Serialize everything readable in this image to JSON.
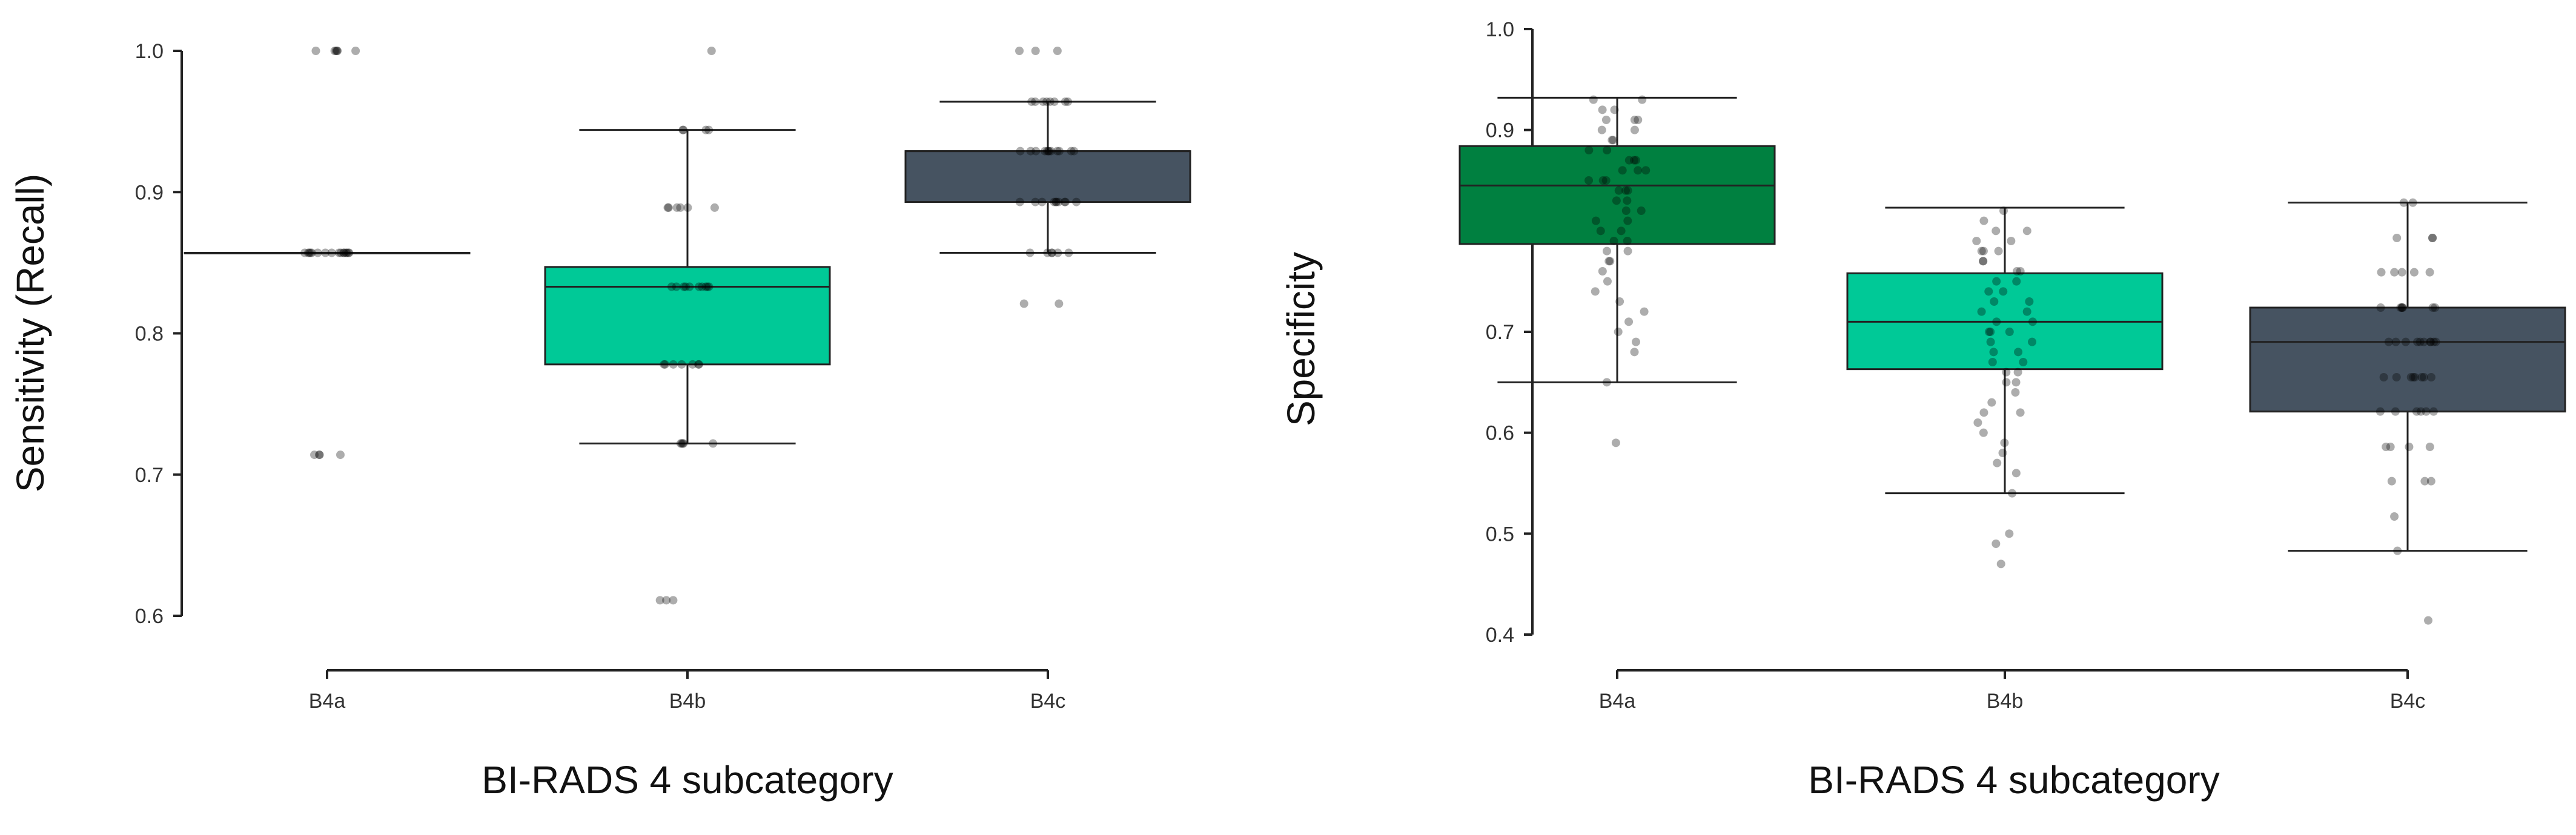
{
  "chart_data": [
    {
      "type": "box",
      "ylabel": "Sensitivity (Recall)",
      "xlabel": "BI-RADS 4 subcategory",
      "ylim": [
        0.6,
        1.0
      ],
      "yticks": [
        "0.6",
        "0.7",
        "0.8",
        "0.9",
        "1.0"
      ],
      "categories": [
        "B4a",
        "B4b",
        "B4c"
      ],
      "grid": false,
      "boxes": [
        {
          "category": "B4a",
          "color": "#000000",
          "whisker_low": 0.857,
          "q1": 0.857,
          "median": 0.857,
          "q3": 0.857,
          "whisker_high": 0.857,
          "points": [
            1.0,
            1.0,
            1.0,
            1.0,
            1.0,
            1.0,
            0.857,
            0.857,
            0.857,
            0.857,
            0.857,
            0.857,
            0.857,
            0.857,
            0.857,
            0.857,
            0.857,
            0.857,
            0.857,
            0.857,
            0.857,
            0.857,
            0.714,
            0.714,
            0.714,
            0.714
          ]
        },
        {
          "category": "B4b",
          "color": "#00C997",
          "whisker_low": 0.722,
          "q1": 0.778,
          "median": 0.833,
          "q3": 0.847,
          "whisker_high": 0.944,
          "points": [
            1.0,
            0.944,
            0.944,
            0.944,
            0.944,
            0.889,
            0.889,
            0.889,
            0.889,
            0.889,
            0.889,
            0.833,
            0.833,
            0.833,
            0.833,
            0.833,
            0.833,
            0.833,
            0.833,
            0.833,
            0.833,
            0.778,
            0.778,
            0.778,
            0.778,
            0.778,
            0.778,
            0.778,
            0.722,
            0.722,
            0.722,
            0.722,
            0.722,
            0.611,
            0.611,
            0.611
          ]
        },
        {
          "category": "B4c",
          "color": "#465361",
          "whisker_low": 0.857,
          "q1": 0.893,
          "median": 0.929,
          "q3": 0.929,
          "whisker_high": 0.964,
          "points": [
            1.0,
            1.0,
            1.0,
            0.964,
            0.964,
            0.964,
            0.964,
            0.964,
            0.964,
            0.964,
            0.964,
            0.929,
            0.929,
            0.929,
            0.929,
            0.929,
            0.929,
            0.929,
            0.929,
            0.929,
            0.929,
            0.929,
            0.929,
            0.893,
            0.893,
            0.893,
            0.893,
            0.893,
            0.893,
            0.893,
            0.893,
            0.893,
            0.893,
            0.857,
            0.857,
            0.857,
            0.857,
            0.857,
            0.857,
            0.821,
            0.821
          ]
        }
      ]
    },
    {
      "type": "box",
      "ylabel": "Specificity",
      "xlabel": "BI-RADS 4 subcategory",
      "ylim": [
        0.4,
        1.0
      ],
      "yticks": [
        "0.4",
        "0.5",
        "0.6",
        "0.7",
        "0.8",
        "0.9",
        "1.0"
      ],
      "categories": [
        "B4a",
        "B4b",
        "B4c"
      ],
      "grid": false,
      "boxes": [
        {
          "category": "B4a",
          "color": "#008040",
          "whisker_low": 0.65,
          "q1": 0.787,
          "median": 0.845,
          "q3": 0.884,
          "whisker_high": 0.932,
          "points": [
            0.93,
            0.93,
            0.92,
            0.92,
            0.91,
            0.91,
            0.91,
            0.9,
            0.9,
            0.89,
            0.89,
            0.88,
            0.88,
            0.87,
            0.87,
            0.87,
            0.86,
            0.86,
            0.86,
            0.85,
            0.85,
            0.85,
            0.84,
            0.84,
            0.84,
            0.83,
            0.83,
            0.82,
            0.82,
            0.81,
            0.81,
            0.8,
            0.8,
            0.79,
            0.79,
            0.78,
            0.78,
            0.77,
            0.77,
            0.76,
            0.75,
            0.74,
            0.73,
            0.72,
            0.71,
            0.7,
            0.69,
            0.68,
            0.65,
            0.59
          ]
        },
        {
          "category": "B4b",
          "color": "#00C997",
          "whisker_low": 0.54,
          "q1": 0.663,
          "median": 0.71,
          "q3": 0.758,
          "whisker_high": 0.823,
          "points": [
            0.82,
            0.81,
            0.8,
            0.8,
            0.79,
            0.79,
            0.78,
            0.78,
            0.78,
            0.77,
            0.77,
            0.76,
            0.76,
            0.75,
            0.75,
            0.74,
            0.74,
            0.73,
            0.73,
            0.72,
            0.72,
            0.71,
            0.71,
            0.7,
            0.7,
            0.7,
            0.69,
            0.69,
            0.68,
            0.68,
            0.67,
            0.67,
            0.66,
            0.66,
            0.65,
            0.65,
            0.64,
            0.63,
            0.62,
            0.62,
            0.61,
            0.6,
            0.59,
            0.58,
            0.57,
            0.56,
            0.54,
            0.5,
            0.49,
            0.47
          ]
        },
        {
          "category": "B4c",
          "color": "#465361",
          "whisker_low": 0.483,
          "q1": 0.621,
          "median": 0.69,
          "q3": 0.724,
          "whisker_high": 0.828,
          "points": [
            0.828,
            0.828,
            0.793,
            0.793,
            0.793,
            0.759,
            0.759,
            0.759,
            0.759,
            0.759,
            0.724,
            0.724,
            0.724,
            0.724,
            0.724,
            0.724,
            0.724,
            0.69,
            0.69,
            0.69,
            0.69,
            0.69,
            0.69,
            0.69,
            0.69,
            0.69,
            0.69,
            0.655,
            0.655,
            0.655,
            0.655,
            0.655,
            0.655,
            0.655,
            0.655,
            0.621,
            0.621,
            0.621,
            0.621,
            0.621,
            0.621,
            0.586,
            0.586,
            0.586,
            0.586,
            0.552,
            0.552,
            0.552,
            0.517,
            0.483,
            0.414
          ]
        }
      ]
    }
  ]
}
